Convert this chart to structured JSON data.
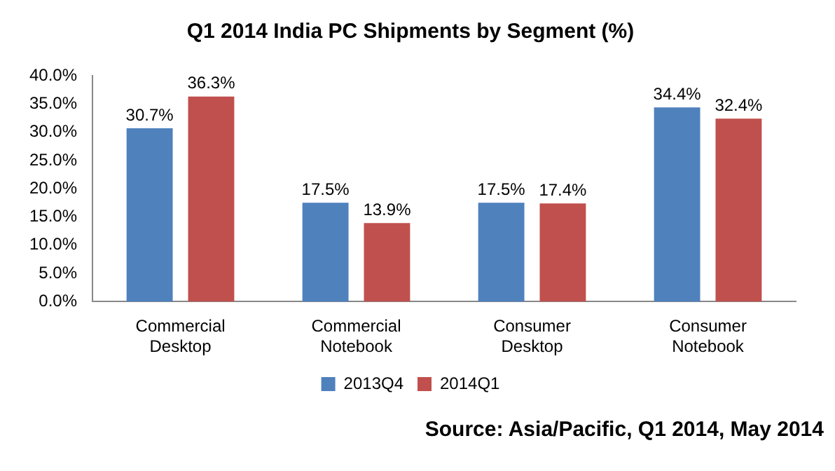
{
  "chart_data": {
    "type": "bar",
    "title": "Q1 2014 India PC Shipments by Segment (%)",
    "categories": [
      "Commercial Desktop",
      "Commercial Notebook",
      "Consumer Desktop",
      "Consumer Notebook"
    ],
    "series": [
      {
        "name": "2013Q4",
        "color": "#4f81bd",
        "values": [
          30.7,
          17.5,
          17.5,
          34.4
        ],
        "value_labels": [
          "30.7%",
          "17.5%",
          "17.5%",
          "34.4%"
        ]
      },
      {
        "name": "2014Q1",
        "color": "#c0504d",
        "values": [
          36.3,
          13.9,
          17.4,
          32.4
        ],
        "value_labels": [
          "36.3%",
          "13.9%",
          "17.4%",
          "32.4%"
        ]
      }
    ],
    "ylim": [
      0,
      40
    ],
    "yticks": [
      {
        "value": 0,
        "label": "0.0%"
      },
      {
        "value": 5,
        "label": "5.0%"
      },
      {
        "value": 10,
        "label": "10.0%"
      },
      {
        "value": 15,
        "label": "15.0%"
      },
      {
        "value": 20,
        "label": "20.0%"
      },
      {
        "value": 25,
        "label": "25.0%"
      },
      {
        "value": 30,
        "label": "30.0%"
      },
      {
        "value": 35,
        "label": "35.0%"
      },
      {
        "value": 40,
        "label": "40.0%"
      }
    ],
    "grid": false,
    "legend": "bottom",
    "annotations": [
      "Source: Asia/Pacific, Q1 2014, May 2014"
    ]
  }
}
